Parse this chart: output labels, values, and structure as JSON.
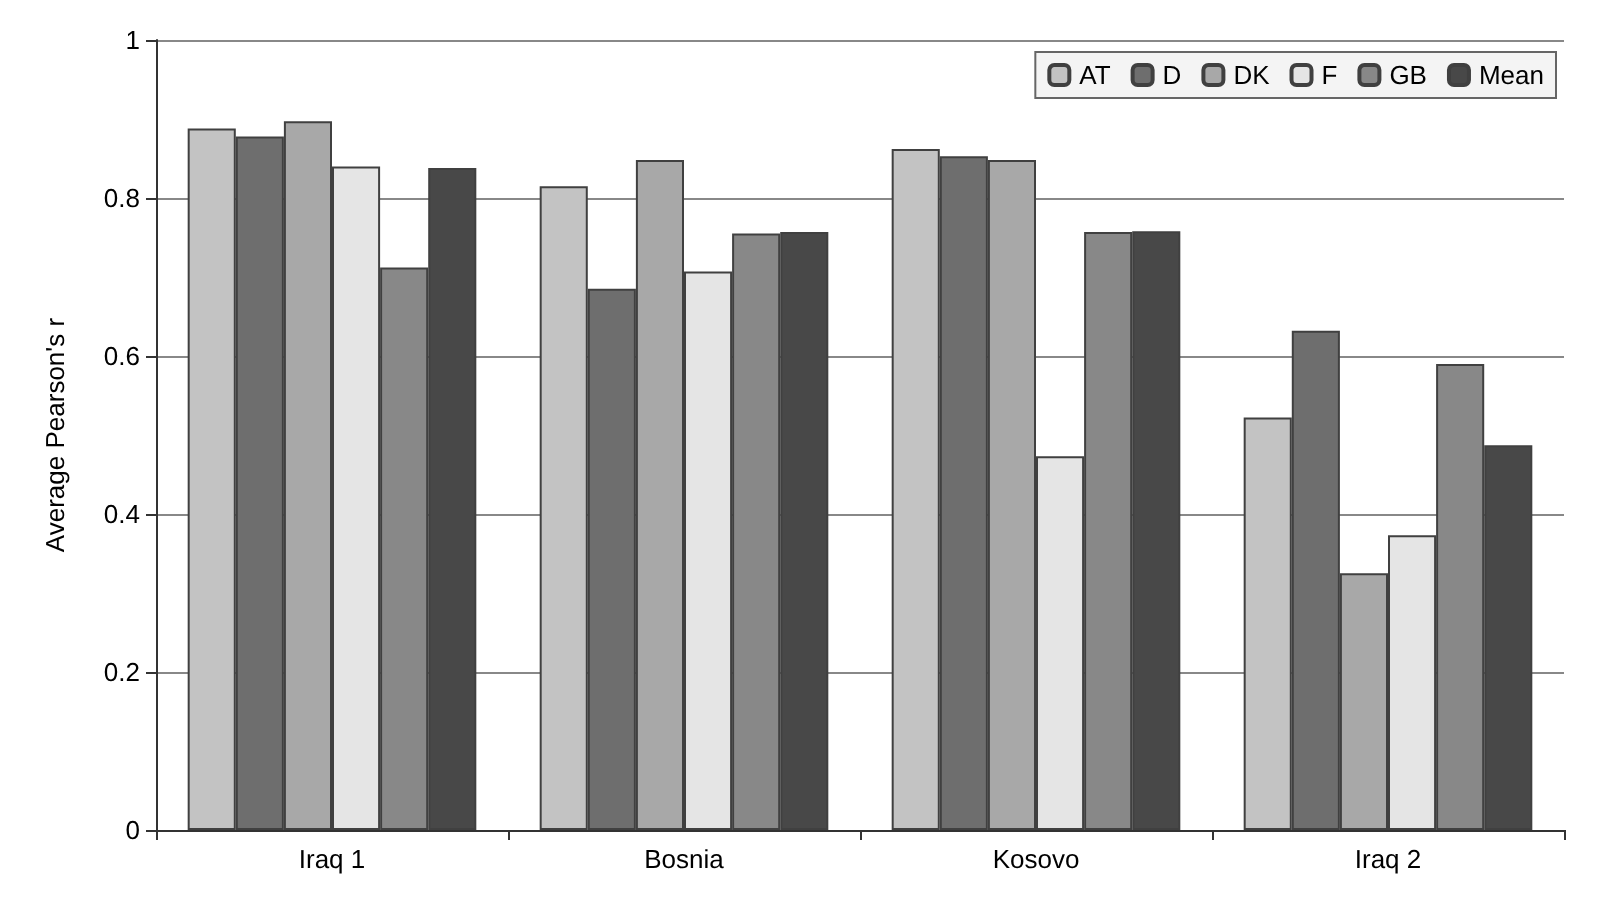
{
  "chart_data": {
    "type": "bar",
    "ylabel": "Average Pearson's r",
    "categories": [
      "Iraq 1",
      "Bosnia",
      "Kosovo",
      "Iraq 2"
    ],
    "series": [
      {
        "name": "AT",
        "color": "#c3c3c3",
        "values": [
          0.888,
          0.815,
          0.862,
          0.522
        ]
      },
      {
        "name": "D",
        "color": "#6e6e6e",
        "values": [
          0.878,
          0.685,
          0.853,
          0.632
        ]
      },
      {
        "name": "DK",
        "color": "#a8a8a8",
        "values": [
          0.897,
          0.848,
          0.848,
          0.325
        ]
      },
      {
        "name": "F",
        "color": "#e5e5e5",
        "values": [
          0.84,
          0.707,
          0.473,
          0.373
        ]
      },
      {
        "name": "GB",
        "color": "#888888",
        "values": [
          0.712,
          0.755,
          0.757,
          0.59
        ]
      },
      {
        "name": "Mean",
        "color": "#484848",
        "values": [
          0.838,
          0.757,
          0.758,
          0.487
        ]
      }
    ],
    "ylim": [
      0,
      1
    ],
    "yticks": [
      0,
      0.2,
      0.4,
      0.6,
      0.8,
      1
    ],
    "grid": "y",
    "legend": "top right"
  }
}
